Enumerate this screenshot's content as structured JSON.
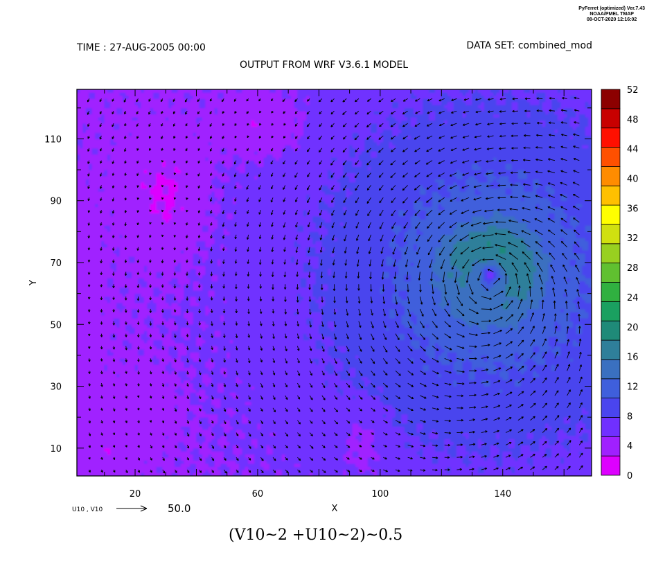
{
  "header": {
    "credit_line1": "PyFerret (optimized) Ver.7.43",
    "credit_line2": "NOAA/PMEL TMAP",
    "credit_line3": "08-OCT-2020 12:16:02",
    "time": "TIME : 27-AUG-2005 00:00",
    "dataset": "DATA SET: combined_mod",
    "subtitle": "OUTPUT FROM WRF V3.6.1 MODEL"
  },
  "vector_key": {
    "label": "U10 , V10",
    "value": "50.0"
  },
  "title": "(V10~2 +U10~2)~0.5",
  "chart_data": {
    "type": "heatmap",
    "variable": "(V10~2 +U10~2)~0.5",
    "overlay": "vector",
    "vector_components": [
      "U10",
      "V10"
    ],
    "vector_reference_value": 50.0,
    "xlabel": "X",
    "ylabel": "Y",
    "xlim": [
      1,
      169
    ],
    "ylim": [
      1,
      126
    ],
    "xticks": [
      20,
      60,
      100,
      140
    ],
    "yticks": [
      10,
      30,
      50,
      70,
      90,
      110
    ],
    "colorbar": {
      "levels": [
        0,
        4,
        8,
        12,
        16,
        20,
        24,
        28,
        32,
        36,
        40,
        44,
        48,
        52
      ],
      "colors": [
        "#dd00ff",
        "#a020ff",
        "#7030ff",
        "#4a45ee",
        "#3f5fdc",
        "#3a70c0",
        "#2f7f9a",
        "#1f8a78",
        "#1aa060",
        "#30b040",
        "#60c030",
        "#98d020",
        "#d0e010",
        "#ffff00",
        "#ffc000",
        "#ff8c00",
        "#ff5000",
        "#ff1000",
        "#c80000",
        "#8c0000"
      ]
    },
    "storm_center": {
      "x": 136,
      "y": 66
    },
    "max_speed_approx": 17
  }
}
